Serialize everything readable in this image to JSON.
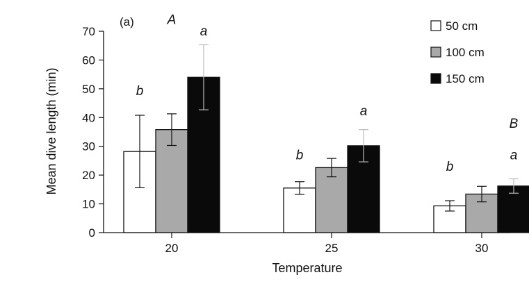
{
  "chart_data": {
    "type": "bar",
    "panel_label": "(a)",
    "xlabel": "Temperature",
    "ylabel": "Mean dive length (min)",
    "ylim": [
      0,
      70
    ],
    "yticks": [
      "0",
      "10",
      "20",
      "30",
      "40",
      "50",
      "60",
      "70"
    ],
    "categories": [
      "20",
      "25",
      "30"
    ],
    "series": [
      {
        "name": "50 cm",
        "color": "#ffffff",
        "values": [
          28.2,
          15.5,
          9.3
        ],
        "errors": [
          12.6,
          2.2,
          1.8
        ]
      },
      {
        "name": "100 cm",
        "color": "#a9a9a9",
        "values": [
          35.8,
          22.6,
          13.4
        ],
        "errors": [
          5.5,
          3.2,
          2.7
        ]
      },
      {
        "name": "150 cm",
        "color": "#0a0a0a",
        "values": [
          54.0,
          30.2,
          16.2
        ],
        "errors": [
          11.3,
          5.6,
          2.5
        ]
      }
    ],
    "legend_position": "top-right",
    "annotations": [
      {
        "text": "A",
        "category": "20",
        "series": 1,
        "y": 72.5,
        "style": "caps"
      },
      {
        "text": "a",
        "category": "20",
        "series": 2,
        "y": 68.5
      },
      {
        "text": "b",
        "category": "20",
        "series": 0,
        "y": 47.8
      },
      {
        "text": "b",
        "category": "25",
        "series": 0,
        "y": 25.5
      },
      {
        "text": "a",
        "category": "25",
        "series": 2,
        "y": 40.8
      },
      {
        "text": "B",
        "category": "30",
        "series": 2,
        "y": 36.5,
        "style": "caps"
      },
      {
        "text": "b",
        "category": "30",
        "series": 0,
        "y": 21.5
      },
      {
        "text": "a",
        "category": "30",
        "series": 2,
        "y": 25.5
      }
    ]
  }
}
